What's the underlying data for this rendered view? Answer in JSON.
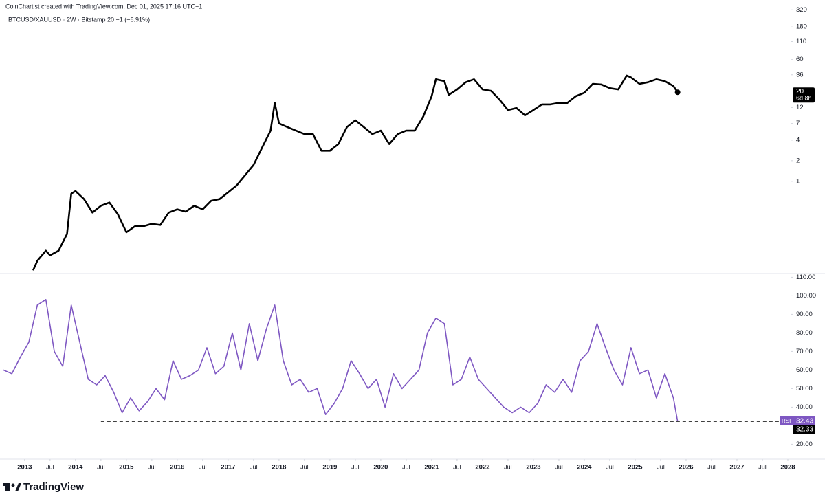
{
  "header": {
    "credit": "CoinChartist created with TradingView.com, Dec 01, 2025 17:16 UTC+1",
    "symbol": "BTCUSD/XAUUSD · 2W · Bitstamp  20  −1 (−6.91%)"
  },
  "logo": "TradingView",
  "chart_data": [
    {
      "type": "line",
      "log_scale": true,
      "xlim": [
        "2012-08",
        "2028-01"
      ],
      "ylim": [
        0.045,
        445
      ],
      "yticks": [
        1,
        2,
        4,
        7,
        12,
        36,
        60,
        110,
        180,
        320
      ],
      "countdown": "6d 8h",
      "series": [
        {
          "name": "BTCUSD/XAUUSD",
          "color": "#000000",
          "x": [
            "2013-03",
            "2013-04",
            "2013-06",
            "2013-07",
            "2013-09",
            "2013-11",
            "2013-12",
            "2014-01",
            "2014-03",
            "2014-05",
            "2014-07",
            "2014-09",
            "2014-11",
            "2015-01",
            "2015-03",
            "2015-05",
            "2015-07",
            "2015-09",
            "2015-11",
            "2016-01",
            "2016-03",
            "2016-05",
            "2016-07",
            "2016-09",
            "2016-11",
            "2017-01",
            "2017-03",
            "2017-05",
            "2017-07",
            "2017-09",
            "2017-11",
            "2017-12",
            "2018-01",
            "2018-03",
            "2018-05",
            "2018-07",
            "2018-09",
            "2018-11",
            "2019-01",
            "2019-03",
            "2019-05",
            "2019-07",
            "2019-09",
            "2019-11",
            "2020-01",
            "2020-03",
            "2020-05",
            "2020-07",
            "2020-09",
            "2020-11",
            "2021-01",
            "2021-02",
            "2021-04",
            "2021-05",
            "2021-07",
            "2021-09",
            "2021-11",
            "2022-01",
            "2022-03",
            "2022-05",
            "2022-07",
            "2022-09",
            "2022-11",
            "2023-01",
            "2023-03",
            "2023-05",
            "2023-07",
            "2023-09",
            "2023-11",
            "2024-01",
            "2024-03",
            "2024-05",
            "2024-07",
            "2024-09",
            "2024-11",
            "2024-12",
            "2025-02",
            "2025-04",
            "2025-06",
            "2025-08",
            "2025-10",
            "2025-11"
          ],
          "values": [
            0.05,
            0.069,
            0.097,
            0.083,
            0.097,
            0.17,
            0.66,
            0.72,
            0.55,
            0.35,
            0.44,
            0.49,
            0.33,
            0.18,
            0.22,
            0.22,
            0.24,
            0.23,
            0.35,
            0.39,
            0.36,
            0.44,
            0.39,
            0.52,
            0.55,
            0.69,
            0.87,
            1.23,
            1.74,
            3.1,
            5.5,
            14,
            7,
            6.2,
            5.5,
            4.9,
            4.9,
            2.8,
            2.8,
            3.5,
            6.2,
            7.8,
            6.2,
            4.9,
            5.5,
            3.5,
            4.9,
            5.5,
            5.5,
            8.8,
            17.5,
            31,
            29,
            18.3,
            22,
            28,
            31,
            22,
            21,
            15.6,
            11,
            11.8,
            9.2,
            11,
            13.3,
            13.3,
            14,
            14,
            17.5,
            19.7,
            26.5,
            26,
            23,
            22,
            35,
            33,
            26.5,
            28,
            31,
            29,
            24.7,
            20
          ]
        }
      ]
    },
    {
      "type": "line",
      "xlim": [
        "2012-08",
        "2028-01"
      ],
      "ylim": [
        12,
        112
      ],
      "yticks": [
        {
          "value": 20,
          "label": "20.00"
        },
        {
          "value": 40,
          "label": "40.00"
        },
        {
          "value": 50,
          "label": "50.00"
        },
        {
          "value": 60,
          "label": "60.00"
        },
        {
          "value": 70,
          "label": "70.00"
        },
        {
          "value": 80,
          "label": "80.00"
        },
        {
          "value": 90,
          "label": "90.00"
        },
        {
          "value": 100,
          "label": "100.00"
        },
        {
          "value": 110,
          "label": "110.00"
        }
      ],
      "xticks": [
        {
          "value": "2013-01",
          "label": "2013"
        },
        {
          "value": "2013-07",
          "label": "Jul"
        },
        {
          "value": "2014-01",
          "label": "2014"
        },
        {
          "value": "2014-07",
          "label": "Jul"
        },
        {
          "value": "2015-01",
          "label": "2015"
        },
        {
          "value": "2015-07",
          "label": "Jul"
        },
        {
          "value": "2016-01",
          "label": "2016"
        },
        {
          "value": "2016-07",
          "label": "Jul"
        },
        {
          "value": "2017-01",
          "label": "2017"
        },
        {
          "value": "2017-07",
          "label": "Jul"
        },
        {
          "value": "2018-01",
          "label": "2018"
        },
        {
          "value": "2018-07",
          "label": "Jul"
        },
        {
          "value": "2019-01",
          "label": "2019"
        },
        {
          "value": "2019-07",
          "label": "Jul"
        },
        {
          "value": "2020-01",
          "label": "2020"
        },
        {
          "value": "2020-07",
          "label": "Jul"
        },
        {
          "value": "2021-01",
          "label": "2021"
        },
        {
          "value": "2021-07",
          "label": "Jul"
        },
        {
          "value": "2022-01",
          "label": "2022"
        },
        {
          "value": "2022-07",
          "label": "Jul"
        },
        {
          "value": "2023-01",
          "label": "2023"
        },
        {
          "value": "2023-07",
          "label": "Jul"
        },
        {
          "value": "2024-01",
          "label": "2024"
        },
        {
          "value": "2024-07",
          "label": "Jul"
        },
        {
          "value": "2025-01",
          "label": "2025"
        },
        {
          "value": "2025-07",
          "label": "Jul"
        },
        {
          "value": "2026-01",
          "label": "2026"
        },
        {
          "value": "2026-07",
          "label": "Jul"
        },
        {
          "value": "2027-01",
          "label": "2027"
        },
        {
          "value": "2027-07",
          "label": "Jul"
        },
        {
          "value": "2028-01",
          "label": "2028"
        }
      ],
      "hline": {
        "value": 32.33,
        "from": "2014-07"
      },
      "series": [
        {
          "name": "RSI",
          "color": "#7e57c2",
          "x": [
            "2012-08",
            "2012-10",
            "2012-12",
            "2013-02",
            "2013-04",
            "2013-06",
            "2013-08",
            "2013-10",
            "2013-12",
            "2014-02",
            "2014-04",
            "2014-06",
            "2014-08",
            "2014-10",
            "2014-12",
            "2015-02",
            "2015-04",
            "2015-06",
            "2015-08",
            "2015-10",
            "2015-12",
            "2016-02",
            "2016-04",
            "2016-06",
            "2016-08",
            "2016-10",
            "2016-12",
            "2017-02",
            "2017-04",
            "2017-06",
            "2017-08",
            "2017-10",
            "2017-12",
            "2018-02",
            "2018-04",
            "2018-06",
            "2018-08",
            "2018-10",
            "2018-12",
            "2019-02",
            "2019-04",
            "2019-06",
            "2019-08",
            "2019-10",
            "2019-12",
            "2020-02",
            "2020-04",
            "2020-06",
            "2020-08",
            "2020-10",
            "2020-12",
            "2021-02",
            "2021-04",
            "2021-06",
            "2021-08",
            "2021-10",
            "2021-12",
            "2022-02",
            "2022-04",
            "2022-06",
            "2022-08",
            "2022-10",
            "2022-12",
            "2023-02",
            "2023-04",
            "2023-06",
            "2023-08",
            "2023-10",
            "2023-12",
            "2024-02",
            "2024-04",
            "2024-06",
            "2024-08",
            "2024-10",
            "2024-12",
            "2025-02",
            "2025-04",
            "2025-06",
            "2025-08",
            "2025-10",
            "2025-11"
          ],
          "values": [
            60,
            58,
            67,
            75,
            95,
            98,
            70,
            62,
            95,
            75,
            55,
            52,
            57,
            48,
            37,
            45,
            38,
            43,
            50,
            44,
            65,
            55,
            57,
            60,
            72,
            58,
            62,
            80,
            60,
            85,
            65,
            82,
            95,
            65,
            52,
            55,
            48,
            50,
            36,
            42,
            50,
            65,
            58,
            50,
            55,
            40,
            58,
            50,
            55,
            60,
            80,
            88,
            85,
            52,
            55,
            67,
            55,
            50,
            45,
            40,
            37,
            40,
            37,
            42,
            52,
            48,
            55,
            48,
            65,
            70,
            85,
            72,
            60,
            52,
            72,
            58,
            60,
            45,
            58,
            45,
            32.43
          ]
        }
      ]
    }
  ]
}
